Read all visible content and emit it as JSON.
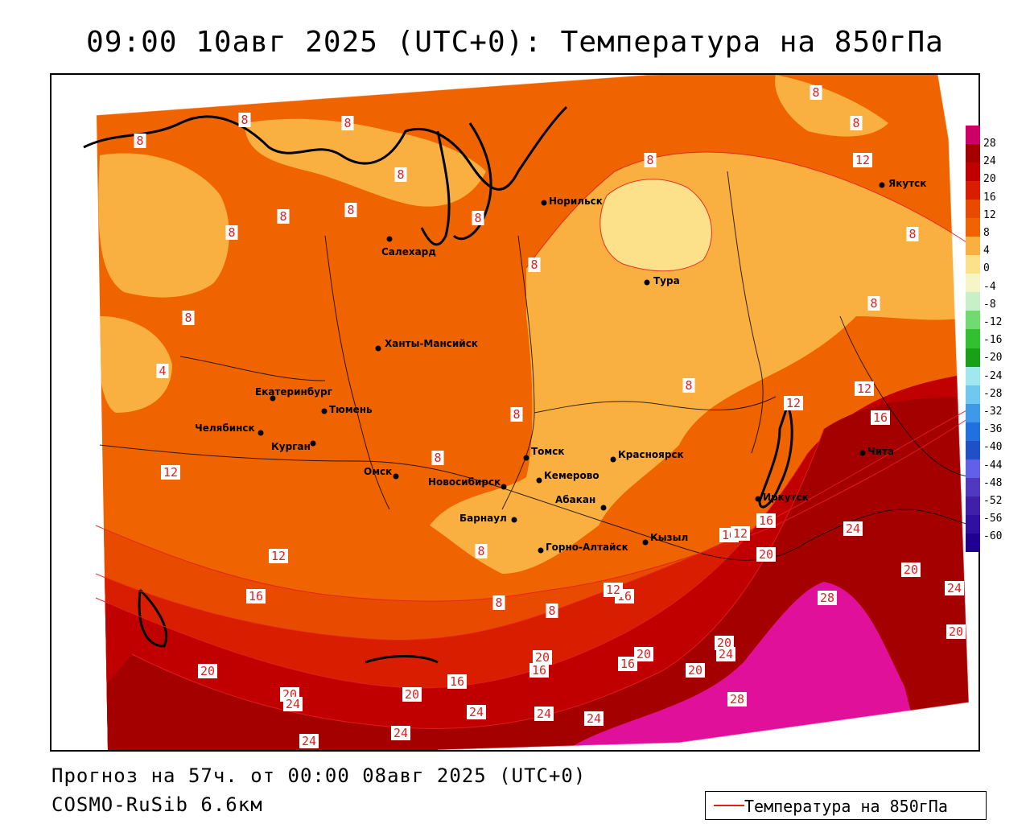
{
  "title": "09:00 10авг 2025 (UTC+0): Температура на 850гПа",
  "footer": {
    "forecast": "Прогноз на 57ч. от 00:00 08авг 2025 (UTC+0)",
    "model": "COSMO-RuSib 6.6км"
  },
  "legend": {
    "label": "Температура на 850гПа",
    "line_color": "#e32020"
  },
  "colorbar": {
    "labels": [
      "28",
      "24",
      "20",
      "16",
      "12",
      "8",
      "4",
      "0",
      "-4",
      "-8",
      "-12",
      "-16",
      "-20",
      "-24",
      "-28",
      "-32",
      "-36",
      "-40",
      "-44",
      "-48",
      "-52",
      "-56",
      "-60"
    ],
    "colors": [
      "#cc0066",
      "#a50000",
      "#c00000",
      "#d81d00",
      "#e84a00",
      "#f06400",
      "#f9b040",
      "#fde08a",
      "#f5f5c8",
      "#c8f0c8",
      "#70dc70",
      "#30c030",
      "#18a018",
      "#a0e8f0",
      "#70c8f0",
      "#4098e8",
      "#2070e0",
      "#2050c8",
      "#6060e8",
      "#5038c0",
      "#4020a8",
      "#3010a0",
      "#200090"
    ]
  },
  "cities": [
    {
      "name": "Якутск"
    },
    {
      "name": "Норильск"
    },
    {
      "name": "Салехард"
    },
    {
      "name": "Тура"
    },
    {
      "name": "Ханты-Мансийск"
    },
    {
      "name": "Екатеринбург"
    },
    {
      "name": "Тюмень"
    },
    {
      "name": "Челябинск"
    },
    {
      "name": "Курган"
    },
    {
      "name": "Омск"
    },
    {
      "name": "Новосибирск"
    },
    {
      "name": "Томск"
    },
    {
      "name": "Кемерово"
    },
    {
      "name": "Красноярск"
    },
    {
      "name": "Абакан"
    },
    {
      "name": "Барнаул"
    },
    {
      "name": "Горно-Алтайск"
    },
    {
      "name": "Кызыл"
    },
    {
      "name": "Иркутск"
    },
    {
      "name": "Чита"
    }
  ],
  "isotherm_labels": [
    "8",
    "8",
    "8",
    "8",
    "8",
    "8",
    "8",
    "8",
    "8",
    "8",
    "8",
    "4",
    "8",
    "8",
    "8",
    "8",
    "8",
    "8",
    "8",
    "8",
    "8",
    "8",
    "12",
    "12",
    "12",
    "12",
    "12",
    "16",
    "16",
    "16",
    "16",
    "16",
    "16",
    "16",
    "16",
    "20",
    "20",
    "20",
    "20",
    "20",
    "20",
    "20",
    "20",
    "20",
    "20",
    "24",
    "24",
    "24",
    "24",
    "24",
    "24",
    "24",
    "24",
    "24",
    "28",
    "28",
    "12",
    "12"
  ]
}
